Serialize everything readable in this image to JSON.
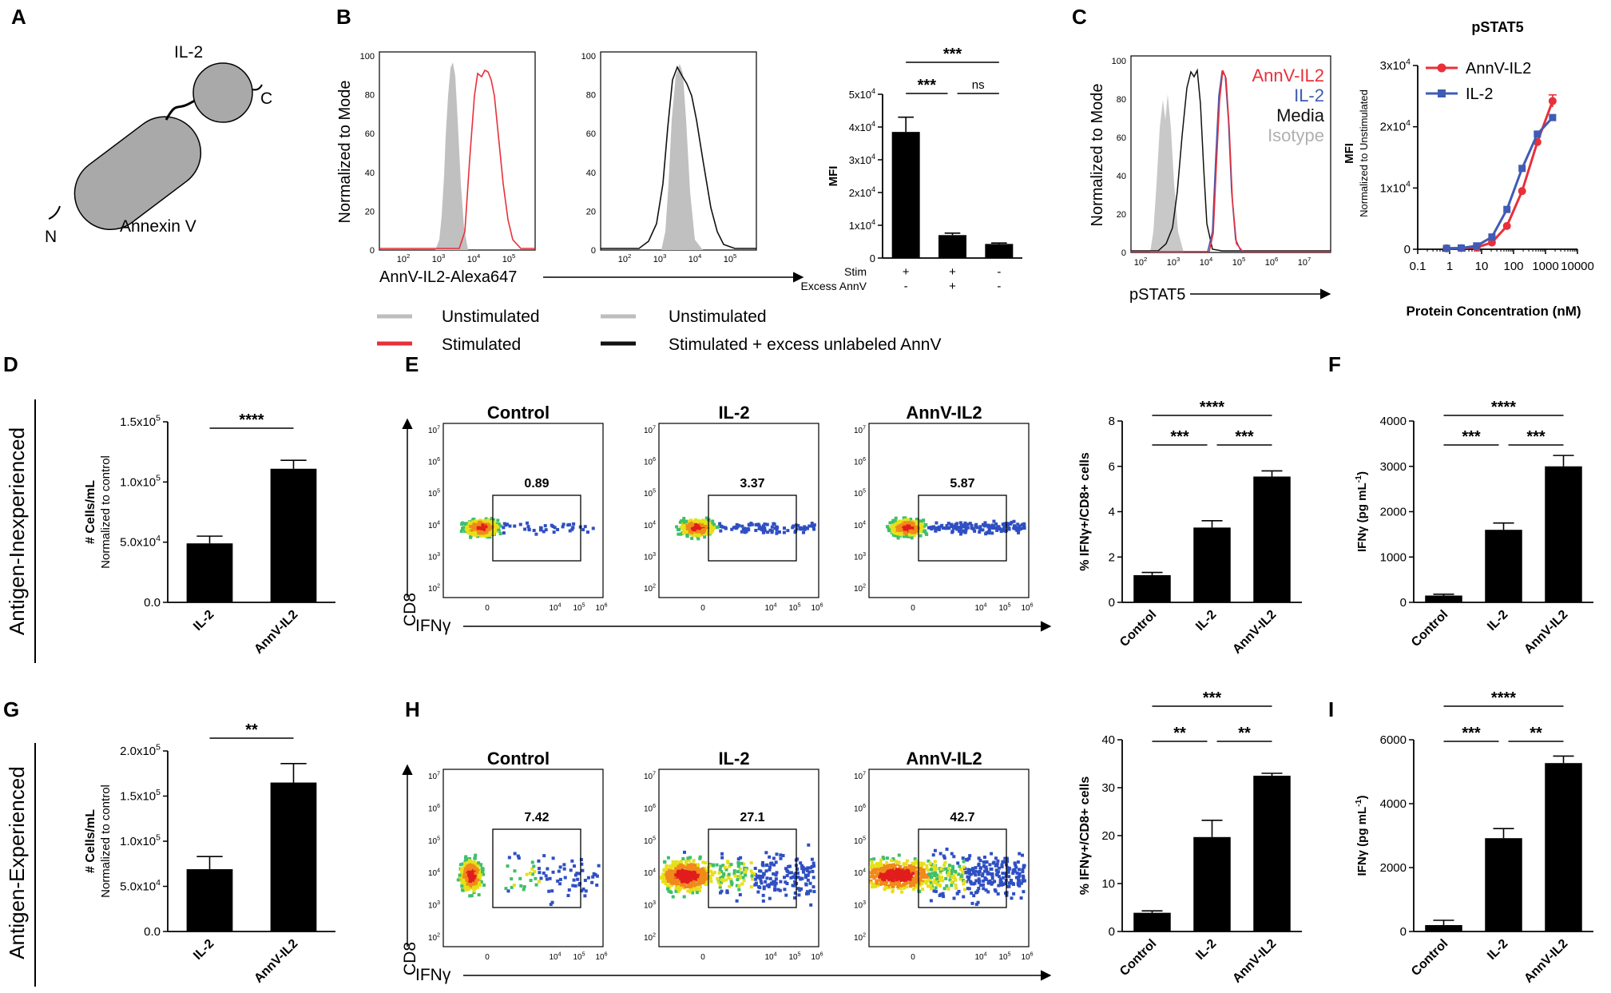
{
  "panel_letters": {
    "A": "A",
    "B": "B",
    "C": "C",
    "D": "D",
    "E": "E",
    "F": "F",
    "G": "G",
    "H": "H",
    "I": "I"
  },
  "colors": {
    "red": "#e8303a",
    "blue": "#3f5bb5",
    "gray": "#bdbdbd",
    "black": "#111111"
  },
  "panel_a": {
    "il2": "IL-2",
    "c_term": "C",
    "n_term": "N",
    "annexin": "Annexin V"
  },
  "panel_b": {
    "ylabel": "Normalized to Mode",
    "xlabel": "AnnV-IL2-Alexa647",
    "yticks": [
      "0",
      "20",
      "40",
      "60",
      "80",
      "100"
    ],
    "xticks": [
      {
        "b": "10",
        "e": "2"
      },
      {
        "b": "10",
        "e": "3"
      },
      {
        "b": "10",
        "e": "4"
      },
      {
        "b": "10",
        "e": "5"
      }
    ],
    "legend": [
      "Unstimulated",
      "Stimulated",
      "Unstimulated",
      "Stimulated + excess unlabeled AnnV"
    ]
  },
  "panel_c": {
    "ylabel": "Normalized to Mode",
    "xlabel": "pSTAT5",
    "legend": [
      "AnnV-IL2",
      "IL-2",
      "Media",
      "Isotype"
    ],
    "xticks": [
      {
        "b": "10",
        "e": "2"
      },
      {
        "b": "10",
        "e": "3"
      },
      {
        "b": "10",
        "e": "4"
      },
      {
        "b": "10",
        "e": "5"
      },
      {
        "b": "10",
        "e": "6"
      },
      {
        "b": "10",
        "e": "7"
      }
    ]
  },
  "flow": {
    "xlabel": "IFNγ",
    "ylabel": "CD8",
    "titles": [
      "Control",
      "IL-2",
      "AnnV-IL2"
    ],
    "yticks": [
      {
        "b": "10",
        "e": "7"
      },
      {
        "b": "10",
        "e": "6"
      },
      {
        "b": "10",
        "e": "5"
      },
      {
        "b": "10",
        "e": "4"
      },
      {
        "b": "10",
        "e": "3"
      },
      {
        "b": "10",
        "e": "2"
      }
    ],
    "xticks": [
      {
        "b": "0",
        "e": ""
      },
      {
        "b": "10",
        "e": "4"
      },
      {
        "b": "10",
        "e": "5"
      },
      {
        "b": "10",
        "e": "6"
      }
    ],
    "gates_e": [
      "0.89",
      "3.37",
      "5.87"
    ],
    "gates_h": [
      "7.42",
      "27.1",
      "42.7"
    ]
  },
  "side_labels": {
    "inexperienced": "Antigen-Inexperienced",
    "experienced": "Antigen-Experienced"
  },
  "chart_data": [
    {
      "id": "B-bar",
      "type": "bar",
      "title": "",
      "ylabel": "MFI",
      "categories": [
        "Stim/Excess AnnV: +/-",
        "+/+",
        "-/-"
      ],
      "values": [
        38500,
        7000,
        4300
      ],
      "errors": [
        4500,
        600,
        300
      ],
      "ylim": [
        0,
        50000
      ],
      "yticks": [
        {
          "t": "0",
          "v": 0
        },
        {
          "t": "1x10",
          "e": "4",
          "v": 10000
        },
        {
          "t": "2x10",
          "e": "4",
          "v": 20000
        },
        {
          "t": "3x10",
          "e": "4",
          "v": 30000
        },
        {
          "t": "4x10",
          "e": "4",
          "v": 40000
        },
        {
          "t": "5x10",
          "e": "4",
          "v": 50000
        }
      ],
      "row_labels": [
        "Stim",
        "Excess AnnV"
      ],
      "rows": [
        [
          "+",
          "+",
          "-"
        ],
        [
          "-",
          "+",
          "-"
        ]
      ],
      "sig": [
        {
          "label": "***",
          "from": 0,
          "to": 1
        },
        {
          "label": "ns",
          "from": 1,
          "to": 2
        },
        {
          "label": "***",
          "from": 0,
          "to": 2
        }
      ]
    },
    {
      "id": "C-line",
      "type": "line",
      "title": "pSTAT5",
      "xlabel": "Protein Concentration (nM)",
      "ylabel": "MFI",
      "ylabel2": "Normalized to Unstimulated",
      "xscale": "log",
      "xlim": [
        0.1,
        10000
      ],
      "ylim": [
        0,
        30000
      ],
      "xticks": [
        "0.1",
        "1",
        "10",
        "100",
        "1000",
        "10000"
      ],
      "yticks": [
        {
          "t": "0",
          "v": 0
        },
        {
          "t": "1x10",
          "e": "4",
          "v": 10000
        },
        {
          "t": "2x10",
          "e": "4",
          "v": 20000
        },
        {
          "t": "3x10",
          "e": "4",
          "v": 30000
        }
      ],
      "series": [
        {
          "name": "AnnV-IL2",
          "color": "#e8303a",
          "x": [
            0.8,
            2.3,
            7,
            21,
            62,
            185,
            556,
            1667
          ],
          "y": [
            150,
            180,
            300,
            1100,
            3800,
            9500,
            17500,
            24200
          ],
          "err": [
            0,
            0,
            0,
            0,
            0,
            0,
            0,
            1000
          ]
        },
        {
          "name": "IL-2",
          "color": "#3f5bb5",
          "x": [
            0.8,
            2.3,
            7,
            21,
            62,
            185,
            556,
            1667
          ],
          "y": [
            150,
            200,
            550,
            2000,
            6500,
            13200,
            18800,
            21500
          ],
          "err": [
            0,
            0,
            0,
            0,
            0,
            0,
            0,
            0
          ]
        }
      ]
    },
    {
      "id": "D-bar",
      "type": "bar",
      "ylabel": "# Cells/mL",
      "ylabel2": "Normalized to control",
      "categories": [
        "IL-2",
        "AnnV-IL2"
      ],
      "values": [
        49000,
        111000
      ],
      "errors": [
        6000,
        7000
      ],
      "ylim": [
        0,
        150000
      ],
      "yticks": [
        {
          "t": "0.0",
          "v": 0
        },
        {
          "t": "5.0x10",
          "e": "4",
          "v": 50000
        },
        {
          "t": "1.0x10",
          "e": "5",
          "v": 100000
        },
        {
          "t": "1.5x10",
          "e": "5",
          "v": 150000
        }
      ],
      "sig": [
        {
          "label": "****",
          "from": 0,
          "to": 1
        }
      ]
    },
    {
      "id": "E-bar",
      "type": "bar",
      "ylabel": "% IFNγ+/CD8+ cells",
      "categories": [
        "Control",
        "IL-2",
        "AnnV-IL2"
      ],
      "values": [
        1.2,
        3.3,
        5.55
      ],
      "errors": [
        0.12,
        0.3,
        0.25
      ],
      "ylim": [
        0,
        8
      ],
      "yticks": [
        {
          "t": "0",
          "v": 0
        },
        {
          "t": "2",
          "v": 2
        },
        {
          "t": "4",
          "v": 4
        },
        {
          "t": "6",
          "v": 6
        },
        {
          "t": "8",
          "v": 8
        }
      ],
      "sig": [
        {
          "label": "***",
          "from": 0,
          "to": 1
        },
        {
          "label": "***",
          "from": 1,
          "to": 2
        },
        {
          "label": "****",
          "from": 0,
          "to": 2
        }
      ]
    },
    {
      "id": "F-bar",
      "type": "bar",
      "ylabel": "IFNγ (pg mL",
      "ylabel_sup": "-1",
      "ylabel_end": ")",
      "categories": [
        "Control",
        "IL-2",
        "AnnV-IL2"
      ],
      "values": [
        150,
        1600,
        3000
      ],
      "errors": [
        30,
        150,
        240
      ],
      "ylim": [
        0,
        4000
      ],
      "yticks": [
        {
          "t": "0",
          "v": 0
        },
        {
          "t": "1000",
          "v": 1000
        },
        {
          "t": "2000",
          "v": 2000
        },
        {
          "t": "3000",
          "v": 3000
        },
        {
          "t": "4000",
          "v": 4000
        }
      ],
      "sig": [
        {
          "label": "***",
          "from": 0,
          "to": 1
        },
        {
          "label": "***",
          "from": 1,
          "to": 2
        },
        {
          "label": "****",
          "from": 0,
          "to": 2
        }
      ]
    },
    {
      "id": "G-bar",
      "type": "bar",
      "ylabel": "# Cells/mL",
      "ylabel2": "Normalized to control",
      "categories": [
        "IL-2",
        "AnnV-IL2"
      ],
      "values": [
        69000,
        165000
      ],
      "errors": [
        14000,
        21000
      ],
      "ylim": [
        0,
        200000
      ],
      "yticks": [
        {
          "t": "0.0",
          "v": 0
        },
        {
          "t": "5.0x10",
          "e": "4",
          "v": 50000
        },
        {
          "t": "1.0x10",
          "e": "5",
          "v": 100000
        },
        {
          "t": "1.5x10",
          "e": "5",
          "v": 150000
        },
        {
          "t": "2.0x10",
          "e": "5",
          "v": 200000
        }
      ],
      "sig": [
        {
          "label": "**",
          "from": 0,
          "to": 1
        }
      ]
    },
    {
      "id": "H-bar",
      "type": "bar",
      "ylabel": "% IFNγ+/CD8+ cells",
      "categories": [
        "Control",
        "IL-2",
        "AnnV-IL2"
      ],
      "values": [
        3.9,
        19.7,
        32.5
      ],
      "errors": [
        0.4,
        3.5,
        0.5
      ],
      "ylim": [
        0,
        40
      ],
      "yticks": [
        {
          "t": "0",
          "v": 0
        },
        {
          "t": "10",
          "v": 10
        },
        {
          "t": "20",
          "v": 20
        },
        {
          "t": "30",
          "v": 30
        },
        {
          "t": "40",
          "v": 40
        }
      ],
      "sig": [
        {
          "label": "**",
          "from": 0,
          "to": 1
        },
        {
          "label": "**",
          "from": 1,
          "to": 2
        },
        {
          "label": "***",
          "from": 0,
          "to": 2
        }
      ]
    },
    {
      "id": "I-bar",
      "type": "bar",
      "ylabel": "IFNγ (pg mL",
      "ylabel_sup": "-1",
      "ylabel_end": ")",
      "categories": [
        "Control",
        "IL-2",
        "AnnV-IL2"
      ],
      "values": [
        200,
        2920,
        5270
      ],
      "errors": [
        150,
        300,
        220
      ],
      "ylim": [
        0,
        6000
      ],
      "yticks": [
        {
          "t": "0",
          "v": 0
        },
        {
          "t": "2000",
          "v": 2000
        },
        {
          "t": "4000",
          "v": 4000
        },
        {
          "t": "6000",
          "v": 6000
        }
      ],
      "sig": [
        {
          "label": "***",
          "from": 0,
          "to": 1
        },
        {
          "label": "**",
          "from": 1,
          "to": 2
        },
        {
          "label": "****",
          "from": 0,
          "to": 2
        }
      ]
    }
  ]
}
